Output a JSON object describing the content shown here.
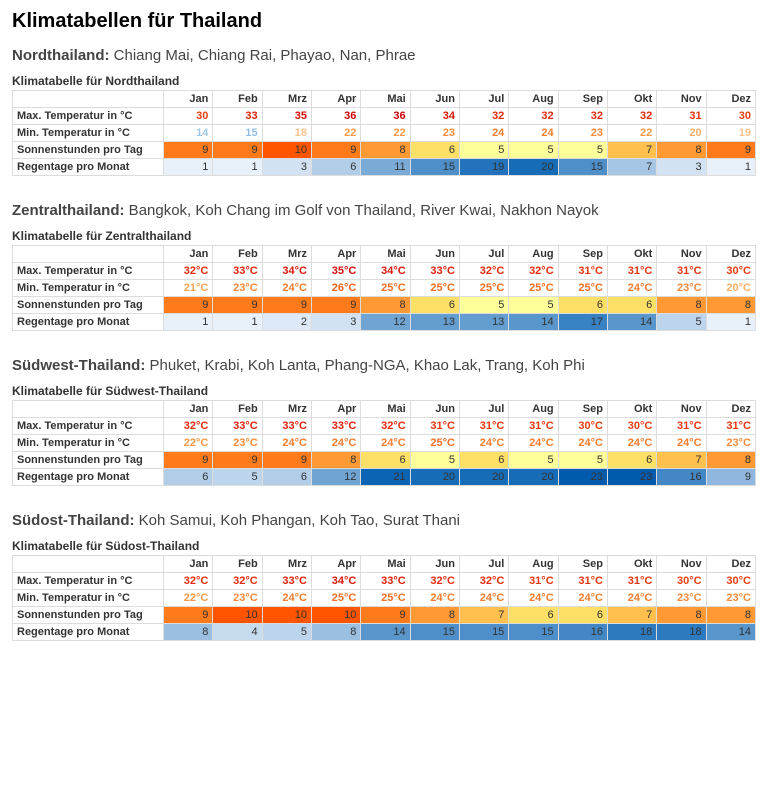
{
  "page_title": "Klimatabellen für Thailand",
  "months": [
    "Jan",
    "Feb",
    "Mrz",
    "Apr",
    "Mai",
    "Jun",
    "Jul",
    "Aug",
    "Sep",
    "Okt",
    "Nov",
    "Dez"
  ],
  "row_labels": {
    "max": "Max. Temperatur in °C",
    "min": "Min. Temperatur in °C",
    "sun": "Sonnenstunden pro Tag",
    "rain": "Regentage pro Monat"
  },
  "temp_colors": {
    "t14": "#9ec8e8",
    "t15": "#8fbfe4",
    "t18": "#f8c38d",
    "t19": "#f8c38d",
    "t20": "#f7b06a",
    "t21": "#f6a556",
    "t22": "#f5994a",
    "t23": "#f48b3c",
    "t24": "#f27d2e",
    "t25": "#f07024",
    "t26": "#ef631b",
    "t30": "#e73f14",
    "t31": "#e43612",
    "t32": "#e02c10",
    "t33": "#dc220e",
    "t34": "#d7180c",
    "t35": "#d20e0a",
    "t36": "#cc0408"
  },
  "sun_colors": {
    "s5": "#ffff99",
    "s6": "#ffe066",
    "s7": "#ffc04d",
    "s8": "#ff9933",
    "s9": "#ff7a1a",
    "s10": "#ff5500"
  },
  "rain_colors": {
    "r1": "#e8f0fa",
    "r2": "#dde9f6",
    "r3": "#d2e2f3",
    "r4": "#c7dbef",
    "r5": "#bcd4ec",
    "r6": "#b1cde8",
    "r7": "#a6c6e5",
    "r8": "#9bbfe1",
    "r9": "#90b8de",
    "r11": "#7aabd7",
    "r12": "#6fa4d3",
    "r13": "#649dd0",
    "r14": "#5996cc",
    "r15": "#4e8fc9",
    "r16": "#4388c5",
    "r17": "#3881c2",
    "r18": "#2d7abe",
    "r19": "#2273bb",
    "r20": "#176cb7",
    "r21": "#0c65b4",
    "r23": "#005bad"
  },
  "regions": [
    {
      "name": "Nordthailand",
      "cities": "Chiang Mai, Chiang Rai, Phayao, Nan, Phrae",
      "caption": "Klimatabelle für Nordthailand",
      "max": [
        "30",
        "33",
        "35",
        "36",
        "36",
        "34",
        "32",
        "32",
        "32",
        "32",
        "31",
        "30"
      ],
      "min": [
        "14",
        "15",
        "18",
        "22",
        "22",
        "23",
        "24",
        "24",
        "23",
        "22",
        "20",
        "19"
      ],
      "sun": [
        "9",
        "9",
        "10",
        "9",
        "8",
        "6",
        "5",
        "5",
        "5",
        "7",
        "8",
        "9"
      ],
      "rain": [
        "1",
        "1",
        "3",
        "6",
        "11",
        "15",
        "19",
        "20",
        "15",
        "7",
        "3",
        "1"
      ],
      "unit_temp": ""
    },
    {
      "name": "Zentralthailand",
      "cities": "Bangkok, Koh Chang im Golf von Thailand, River Kwai, Nakhon Nayok",
      "caption": "Klimatabelle für Zentralthailand",
      "max": [
        "32°C",
        "33°C",
        "34°C",
        "35°C",
        "34°C",
        "33°C",
        "32°C",
        "32°C",
        "31°C",
        "31°C",
        "31°C",
        "30°C"
      ],
      "min": [
        "21°C",
        "23°C",
        "24°C",
        "26°C",
        "25°C",
        "25°C",
        "25°C",
        "25°C",
        "25°C",
        "24°C",
        "23°C",
        "20°C"
      ],
      "sun": [
        "9",
        "9",
        "9",
        "9",
        "8",
        "6",
        "5",
        "5",
        "6",
        "6",
        "8",
        "8"
      ],
      "rain": [
        "1",
        "1",
        "2",
        "3",
        "12",
        "13",
        "13",
        "14",
        "17",
        "14",
        "5",
        "1"
      ]
    },
    {
      "name": "Südwest-Thailand",
      "cities": "Phuket, Krabi, Koh Lanta, Phang-NGA, Khao Lak, Trang, Koh Phi",
      "caption": "Klimatabelle für Südwest-Thailand",
      "max": [
        "32°C",
        "33°C",
        "33°C",
        "33°C",
        "32°C",
        "31°C",
        "31°C",
        "31°C",
        "30°C",
        "30°C",
        "31°C",
        "31°C"
      ],
      "min": [
        "22°C",
        "23°C",
        "24°C",
        "24°C",
        "24°C",
        "25°C",
        "24°C",
        "24°C",
        "24°C",
        "24°C",
        "24°C",
        "23°C"
      ],
      "sun": [
        "9",
        "9",
        "9",
        "8",
        "6",
        "5",
        "6",
        "5",
        "5",
        "6",
        "7",
        "8"
      ],
      "rain": [
        "6",
        "5",
        "6",
        "12",
        "21",
        "20",
        "20",
        "20",
        "23",
        "23",
        "16",
        "9"
      ]
    },
    {
      "name": "Südost-Thailand",
      "cities": "Koh Samui, Koh Phangan, Koh Tao, Surat Thani",
      "caption": "Klimatabelle für Südost-Thailand",
      "max": [
        "32°C",
        "32°C",
        "33°C",
        "34°C",
        "33°C",
        "32°C",
        "32°C",
        "31°C",
        "31°C",
        "31°C",
        "30°C",
        "30°C"
      ],
      "min": [
        "22°C",
        "23°C",
        "24°C",
        "25°C",
        "25°C",
        "24°C",
        "24°C",
        "24°C",
        "24°C",
        "24°C",
        "23°C",
        "23°C"
      ],
      "sun": [
        "9",
        "10",
        "10",
        "10",
        "9",
        "8",
        "7",
        "6",
        "6",
        "7",
        "8",
        "8"
      ],
      "rain": [
        "8",
        "4",
        "5",
        "8",
        "14",
        "15",
        "15",
        "15",
        "16",
        "18",
        "18",
        "14"
      ]
    }
  ]
}
